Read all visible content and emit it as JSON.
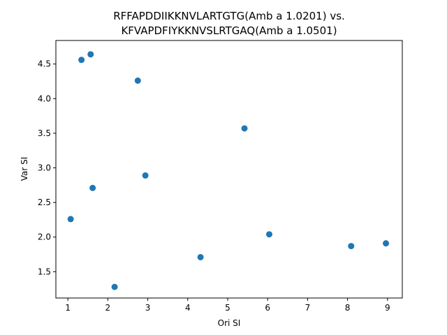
{
  "chart_data": {
    "type": "scatter",
    "title_lines": [
      "RFFAPDDIIKKNVLARTGTG(Amb a 1.0201) vs.",
      "KFVAPDFIYKKNVSLRTGAQ(Amb a 1.0501)"
    ],
    "xlabel": "Ori SI",
    "ylabel": "Var SI",
    "xlim": [
      0.7,
      9.37
    ],
    "ylim": [
      1.12,
      4.84
    ],
    "xticks": [
      1,
      2,
      3,
      4,
      5,
      6,
      7,
      8,
      9
    ],
    "xtick_labels": [
      "1",
      "2",
      "3",
      "4",
      "5",
      "6",
      "7",
      "8",
      "9"
    ],
    "yticks": [
      1.5,
      2.0,
      2.5,
      3.0,
      3.5,
      4.0,
      4.5
    ],
    "ytick_labels": [
      "1.5",
      "2.0",
      "2.5",
      "3.0",
      "3.5",
      "4.0",
      "4.5"
    ],
    "grid": false,
    "marker_color": "#1f77b4",
    "points": [
      {
        "x": 1.07,
        "y": 2.26
      },
      {
        "x": 1.34,
        "y": 4.56
      },
      {
        "x": 1.57,
        "y": 4.64
      },
      {
        "x": 1.62,
        "y": 2.71
      },
      {
        "x": 2.17,
        "y": 1.28
      },
      {
        "x": 2.75,
        "y": 4.26
      },
      {
        "x": 2.94,
        "y": 2.89
      },
      {
        "x": 4.32,
        "y": 1.71
      },
      {
        "x": 5.42,
        "y": 3.57
      },
      {
        "x": 6.04,
        "y": 2.04
      },
      {
        "x": 8.09,
        "y": 1.87
      },
      {
        "x": 8.96,
        "y": 1.91
      }
    ]
  }
}
